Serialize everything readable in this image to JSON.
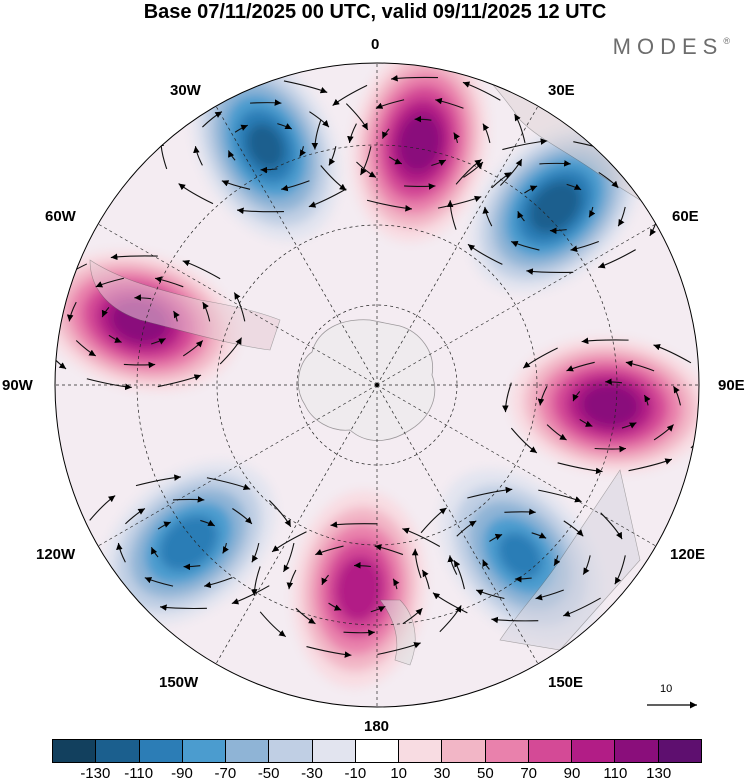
{
  "title": "Base 07/11/2025 00 UTC, valid 09/11/2025 12 UTC",
  "brand": "MODES",
  "brand_mark": "®",
  "longitude_labels": {
    "lon_0": "0",
    "lon_30e": "30E",
    "lon_60e": "60E",
    "lon_90e": "90E",
    "lon_120e": "120E",
    "lon_150e": "150E",
    "lon_180": "180",
    "lon_150w": "150W",
    "lon_120w": "120W",
    "lon_90w": "90W",
    "lon_60w": "60W",
    "lon_30w": "30W"
  },
  "reference_vector": "10",
  "colorbar": {
    "colors": [
      "#12405e",
      "#1b5f8e",
      "#2c7db6",
      "#4b9ccf",
      "#8fb4d6",
      "#c0cfe4",
      "#e2e4ef",
      "#ffffff",
      "#f8dce2",
      "#f2b6c6",
      "#e981ac",
      "#d44a96",
      "#b21d86",
      "#8a0e7b",
      "#5e0f6f"
    ],
    "ticks": [
      "-130",
      "-110",
      "-90",
      "-70",
      "-50",
      "-30",
      "-10",
      "10",
      "30",
      "50",
      "70",
      "90",
      "110",
      "130"
    ]
  },
  "chart_data": {
    "type": "polar-stereographic-map",
    "title": "Base 07/11/2025 00 UTC, valid 09/11/2025 12 UTC",
    "field": "anomaly (shaded) with wind streamlines",
    "levels": [
      -130,
      -110,
      -90,
      -70,
      -50,
      -30,
      -10,
      10,
      30,
      50,
      70,
      90,
      110,
      130
    ],
    "anomaly_centers": [
      {
        "name": "negative-center-30w",
        "lon": -25,
        "lat": -45,
        "value": -115
      },
      {
        "name": "positive-center-10e",
        "lon": 10,
        "lat": -48,
        "value": 125
      },
      {
        "name": "negative-center-45e",
        "lon": 45,
        "lat": -47,
        "value": -125
      },
      {
        "name": "positive-center-95e",
        "lon": 95,
        "lat": -50,
        "value": 125
      },
      {
        "name": "negative-center-140e",
        "lon": 140,
        "lat": -52,
        "value": -95
      },
      {
        "name": "positive-center-175w",
        "lon": -175,
        "lat": -55,
        "value": 105
      },
      {
        "name": "negative-center-130w",
        "lon": -130,
        "lat": -48,
        "value": -105
      },
      {
        "name": "positive-center-75w",
        "lon": -75,
        "lat": -48,
        "value": 125
      }
    ]
  }
}
